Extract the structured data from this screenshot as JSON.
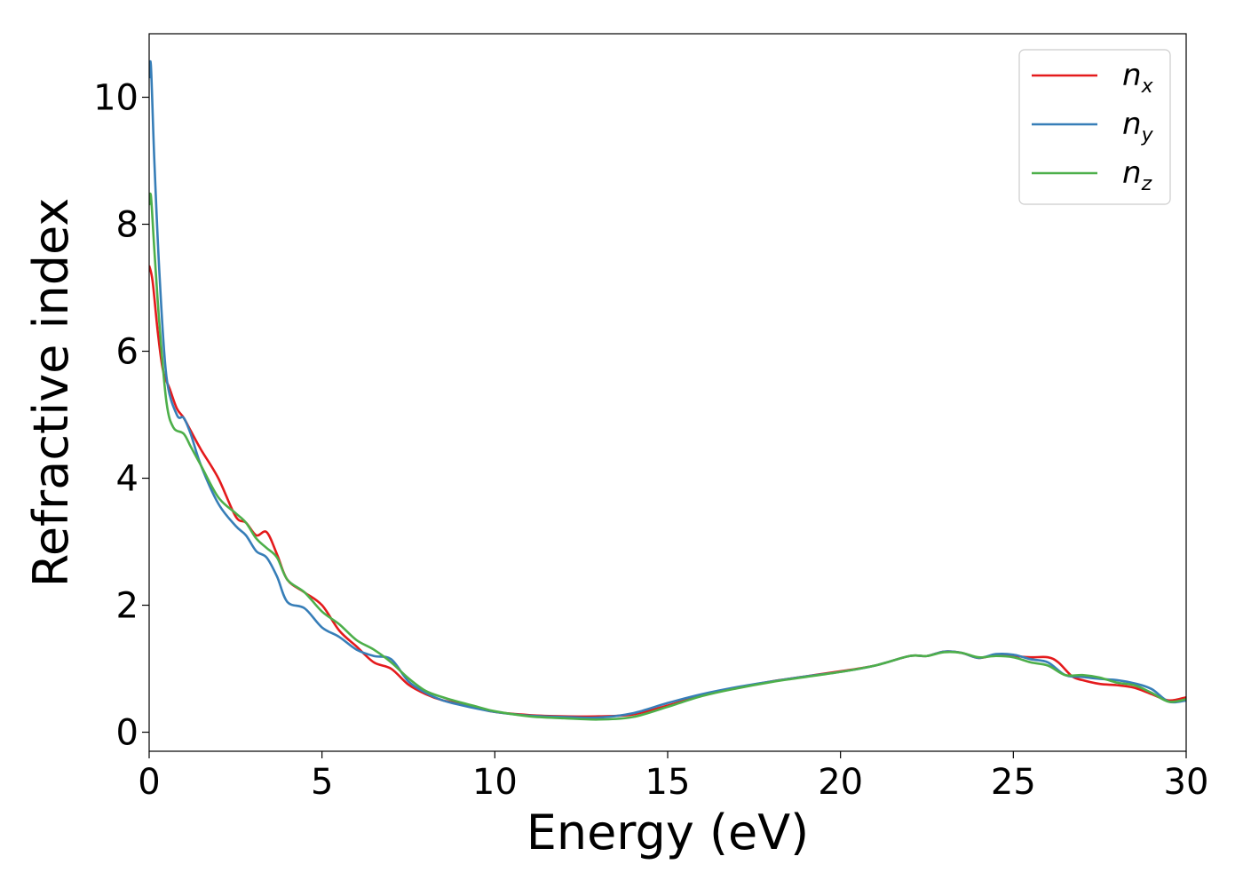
{
  "chart_data": {
    "type": "line",
    "xlabel": "Energy (eV)",
    "ylabel": "Refractive index",
    "xlim": [
      0,
      30
    ],
    "ylim": [
      -0.3,
      11.0
    ],
    "xticks": [
      0,
      5,
      10,
      15,
      20,
      25,
      30
    ],
    "yticks": [
      0,
      2,
      4,
      6,
      8,
      10
    ],
    "xtick_labels": [
      "0",
      "5",
      "10",
      "15",
      "20",
      "25",
      "30"
    ],
    "ytick_labels": [
      "0",
      "2",
      "4",
      "6",
      "8",
      "10"
    ],
    "grid": false,
    "legend_position": "top-right",
    "series": [
      {
        "name": "n_x",
        "label_base": "n",
        "label_sub": "x",
        "color": "#e41a1c",
        "x": [
          0.0,
          0.1,
          0.25,
          0.4,
          0.6,
          0.8,
          1.0,
          1.2,
          1.5,
          2.0,
          2.5,
          2.8,
          3.1,
          3.4,
          3.7,
          4.0,
          4.5,
          5.0,
          5.5,
          6.0,
          6.5,
          7.0,
          7.5,
          8.0,
          8.5,
          9.0,
          9.5,
          10.0,
          11.0,
          12.0,
          13.0,
          14.0,
          15.0,
          16.0,
          17.0,
          18.0,
          19.0,
          20.0,
          21.0,
          22.0,
          22.5,
          23.0,
          23.5,
          24.0,
          24.5,
          25.0,
          25.5,
          26.0,
          26.3,
          26.7,
          27.0,
          27.5,
          28.0,
          28.5,
          29.0,
          29.5,
          30.0
        ],
        "y": [
          7.35,
          7.1,
          6.3,
          5.7,
          5.4,
          5.1,
          4.95,
          4.75,
          4.45,
          4.0,
          3.4,
          3.3,
          3.1,
          3.15,
          2.8,
          2.4,
          2.2,
          2.0,
          1.6,
          1.35,
          1.1,
          1.0,
          0.75,
          0.6,
          0.5,
          0.45,
          0.38,
          0.32,
          0.27,
          0.25,
          0.25,
          0.28,
          0.42,
          0.58,
          0.7,
          0.8,
          0.88,
          0.96,
          1.05,
          1.2,
          1.2,
          1.27,
          1.25,
          1.17,
          1.22,
          1.2,
          1.18,
          1.18,
          1.1,
          0.88,
          0.82,
          0.76,
          0.74,
          0.7,
          0.6,
          0.5,
          0.55
        ]
      },
      {
        "name": "n_y",
        "label_base": "n",
        "label_sub": "y",
        "color": "#377eb8",
        "x": [
          0.0,
          0.05,
          0.15,
          0.3,
          0.5,
          0.8,
          1.0,
          1.2,
          1.5,
          2.0,
          2.5,
          2.8,
          3.1,
          3.4,
          3.7,
          4.0,
          4.5,
          5.0,
          5.5,
          6.0,
          6.5,
          7.0,
          7.5,
          8.0,
          8.5,
          9.0,
          9.5,
          10.0,
          11.0,
          12.0,
          13.0,
          14.0,
          15.0,
          16.0,
          17.0,
          18.0,
          19.0,
          20.0,
          21.0,
          22.0,
          22.5,
          23.0,
          23.5,
          24.0,
          24.5,
          25.0,
          25.5,
          26.0,
          26.5,
          27.0,
          27.5,
          28.0,
          28.5,
          29.0,
          29.5,
          30.0
        ],
        "y": [
          10.3,
          10.5,
          9.0,
          7.2,
          5.6,
          5.0,
          4.95,
          4.7,
          4.2,
          3.6,
          3.25,
          3.1,
          2.85,
          2.75,
          2.45,
          2.05,
          1.95,
          1.65,
          1.5,
          1.3,
          1.2,
          1.15,
          0.8,
          0.62,
          0.5,
          0.43,
          0.37,
          0.32,
          0.26,
          0.24,
          0.23,
          0.3,
          0.46,
          0.6,
          0.71,
          0.8,
          0.88,
          0.95,
          1.05,
          1.2,
          1.2,
          1.27,
          1.25,
          1.17,
          1.23,
          1.22,
          1.15,
          1.1,
          0.9,
          0.87,
          0.84,
          0.82,
          0.77,
          0.68,
          0.48,
          0.5
        ]
      },
      {
        "name": "n_z",
        "label_base": "n",
        "label_sub": "z",
        "color": "#4daf4a",
        "x": [
          0.0,
          0.05,
          0.15,
          0.3,
          0.5,
          0.7,
          1.0,
          1.2,
          1.5,
          2.0,
          2.5,
          2.8,
          3.1,
          3.4,
          3.7,
          4.0,
          4.5,
          5.0,
          5.5,
          6.0,
          6.5,
          7.0,
          7.5,
          8.0,
          8.5,
          9.0,
          9.5,
          10.0,
          11.0,
          12.0,
          13.0,
          14.0,
          15.0,
          16.0,
          17.0,
          18.0,
          19.0,
          20.0,
          21.0,
          22.0,
          22.5,
          23.0,
          23.5,
          24.0,
          24.5,
          25.0,
          25.5,
          26.0,
          26.5,
          27.0,
          27.5,
          28.0,
          28.5,
          29.0,
          29.5,
          30.0
        ],
        "y": [
          8.3,
          8.45,
          7.6,
          6.4,
          5.2,
          4.8,
          4.7,
          4.5,
          4.2,
          3.7,
          3.45,
          3.3,
          3.05,
          2.9,
          2.75,
          2.4,
          2.2,
          1.9,
          1.7,
          1.45,
          1.3,
          1.1,
          0.85,
          0.65,
          0.55,
          0.47,
          0.4,
          0.33,
          0.25,
          0.22,
          0.2,
          0.24,
          0.4,
          0.57,
          0.69,
          0.79,
          0.87,
          0.95,
          1.05,
          1.2,
          1.2,
          1.26,
          1.25,
          1.18,
          1.2,
          1.18,
          1.1,
          1.05,
          0.9,
          0.9,
          0.86,
          0.78,
          0.74,
          0.62,
          0.48,
          0.52
        ]
      }
    ]
  }
}
